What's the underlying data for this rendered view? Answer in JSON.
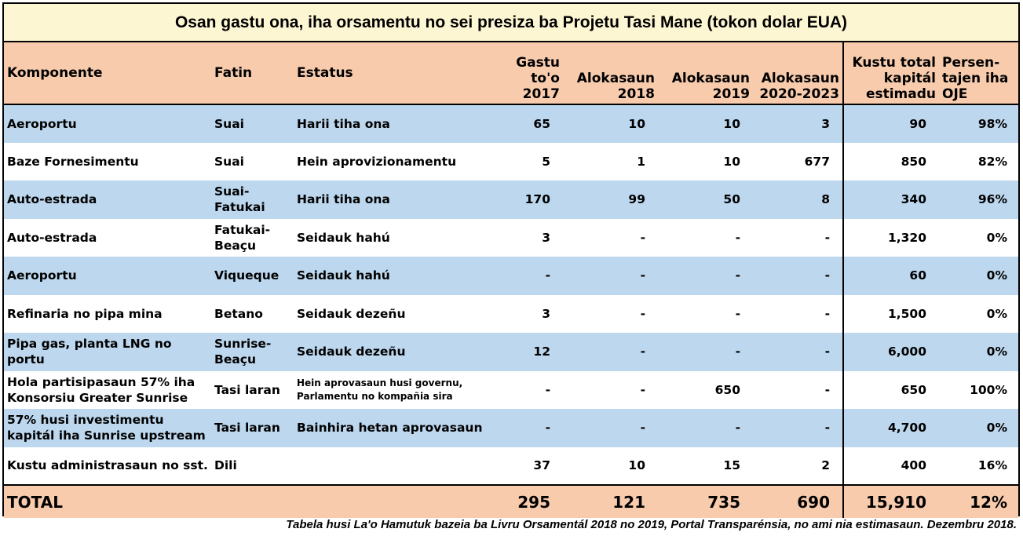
{
  "title": "Osan gastu ona, iha orsamentu no sei presiza ba Projetu Tasi Mane (tokon dolar EUA)",
  "headers": {
    "komponente": "Komponente",
    "fatin": "Fatin",
    "estatus": "Estatus",
    "gastu_l1": "Gastu",
    "gastu_l2": "to'o",
    "gastu_l3": "2017",
    "alok2018_l1": "Alokasaun",
    "alok2018_l2": "2018",
    "alok2019_l1": "Alokasaun",
    "alok2019_l2": "2019",
    "alok2020_l1": "Alokasaun",
    "alok2020_l2": "2020-2023",
    "kustu_l1": "Kustu total",
    "kustu_l2": "kapitál",
    "kustu_l3": "estimadu",
    "pct_l1": "Persen-",
    "pct_l2": "tajen iha",
    "pct_l3": "OJE"
  },
  "rows": [
    {
      "komponente_l1": "Aeroportu",
      "komponente_l2": "",
      "fatin_l1": "Suai",
      "fatin_l2": "",
      "estatus_l1": "Harii tiha ona",
      "estatus_l2": "",
      "gastu": "65",
      "a2018": "10",
      "a2019": "10",
      "a2020": "3",
      "kustu": "90",
      "pct": "98%"
    },
    {
      "komponente_l1": "Baze Fornesimentu",
      "komponente_l2": "",
      "fatin_l1": "Suai",
      "fatin_l2": "",
      "estatus_l1": "Hein aprovizionamentu",
      "estatus_l2": "",
      "gastu": "5",
      "a2018": "1",
      "a2019": "10",
      "a2020": "677",
      "kustu": "850",
      "pct": "82%"
    },
    {
      "komponente_l1": "Auto-estrada",
      "komponente_l2": "",
      "fatin_l1": "Suai-",
      "fatin_l2": "Fatukai",
      "estatus_l1": "Harii tiha ona",
      "estatus_l2": "",
      "gastu": "170",
      "a2018": "99",
      "a2019": "50",
      "a2020": "8",
      "kustu": "340",
      "pct": "96%"
    },
    {
      "komponente_l1": "Auto-estrada",
      "komponente_l2": "",
      "fatin_l1": "Fatukai-",
      "fatin_l2": "Beaçu",
      "estatus_l1": "Seidauk hahú",
      "estatus_l2": "",
      "gastu": "3",
      "a2018": "-",
      "a2019": "-",
      "a2020": "-",
      "kustu": "1,320",
      "pct": "0%"
    },
    {
      "komponente_l1": "Aeroportu",
      "komponente_l2": "",
      "fatin_l1": "Viqueque",
      "fatin_l2": "",
      "estatus_l1": "Seidauk hahú",
      "estatus_l2": "",
      "gastu": "-",
      "a2018": "-",
      "a2019": "-",
      "a2020": "-",
      "kustu": "60",
      "pct": "0%"
    },
    {
      "komponente_l1": "Refinaria no pipa mina",
      "komponente_l2": "",
      "fatin_l1": "Betano",
      "fatin_l2": "",
      "estatus_l1": "Seidauk dezeñu",
      "estatus_l2": "",
      "gastu": "3",
      "a2018": "-",
      "a2019": "-",
      "a2020": "-",
      "kustu": "1,500",
      "pct": "0%"
    },
    {
      "komponente_l1": "Pipa gas, planta LNG no portu",
      "komponente_l2": "",
      "fatin_l1": "Sunrise-",
      "fatin_l2": "Beaçu",
      "estatus_l1": "Seidauk dezeñu",
      "estatus_l2": "",
      "gastu": "12",
      "a2018": "-",
      "a2019": "-",
      "a2020": "-",
      "kustu": "6,000",
      "pct": "0%"
    },
    {
      "komponente_l1": "Hola partisipasaun 57% iha",
      "komponente_l2": "Konsorsiu Greater Sunrise",
      "fatin_l1": "Tasi laran",
      "fatin_l2": "",
      "estatus_l1": "Hein aprovasaun husi governu,",
      "estatus_l2": "Parlamentu no kompañia sira",
      "gastu": "-",
      "a2018": "-",
      "a2019": "650",
      "a2020": "-",
      "kustu": "650",
      "pct": "100%"
    },
    {
      "komponente_l1": "57% husi investimentu",
      "komponente_l2": "kapitál iha Sunrise upstream",
      "fatin_l1": "Tasi laran",
      "fatin_l2": "",
      "estatus_l1": "Bainhira hetan aprovasaun",
      "estatus_l2": "",
      "gastu": "-",
      "a2018": "-",
      "a2019": "-",
      "a2020": "-",
      "kustu": "4,700",
      "pct": "0%"
    },
    {
      "komponente_l1": "Kustu administrasaun no sst.",
      "komponente_l2": "",
      "fatin_l1": "Dili",
      "fatin_l2": "",
      "estatus_l1": "",
      "estatus_l2": "",
      "gastu": "37",
      "a2018": "10",
      "a2019": "15",
      "a2020": "2",
      "kustu": "400",
      "pct": "16%"
    }
  ],
  "total": {
    "label": "TOTAL",
    "gastu": "295",
    "a2018": "121",
    "a2019": "735",
    "a2020": "690",
    "kustu": "15,910",
    "pct": "12%"
  },
  "footnote": "Tabela husi La'o Hamutuk bazeia ba Livru Orsamentál 2018 no 2019, Portal Transparénsia, no ami nia estimasaun.  Dezembru 2018."
}
